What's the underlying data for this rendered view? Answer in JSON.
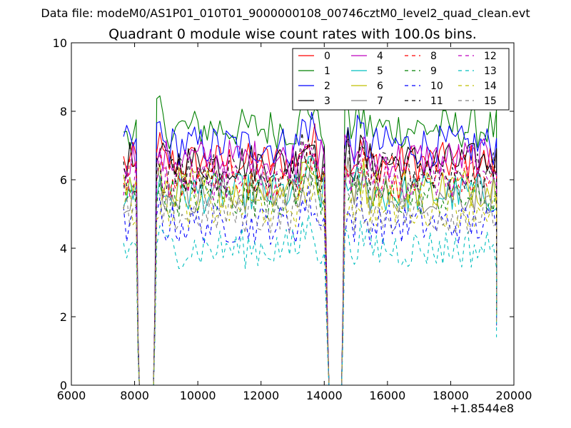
{
  "chart_data": {
    "type": "line",
    "suptitle": "Data file: modeM0/AS1P01_010T01_9000000108_00746cztM0_level2_quad_clean.evt",
    "title": "Quadrant 0 module wise count rates with 100.0s bins.",
    "xlabel": "",
    "ylabel": "",
    "x_offset_label": "+1.8544e8",
    "xlim": [
      6000,
      20000
    ],
    "ylim": [
      0,
      10
    ],
    "x_ticks": [
      6000,
      8000,
      10000,
      12000,
      14000,
      16000,
      18000,
      20000
    ],
    "y_ticks": [
      0,
      2,
      4,
      6,
      8,
      10
    ],
    "x_tick_labels": [
      "6000",
      "8000",
      "10000",
      "12000",
      "14000",
      "16000",
      "18000",
      "20000"
    ],
    "y_tick_labels": [
      "0",
      "2",
      "4",
      "6",
      "8",
      "10"
    ],
    "grid": false,
    "legend_position": "top-right",
    "segments": [
      [
        7650,
        8050
      ],
      [
        8700,
        14050
      ],
      [
        14650,
        19450
      ]
    ],
    "gaps": [
      [
        8150,
        8600
      ],
      [
        14150,
        14550
      ]
    ],
    "series": [
      {
        "name": "0",
        "color": "#ff0000",
        "style": "solid",
        "level": 6.5
      },
      {
        "name": "1",
        "color": "#008000",
        "style": "solid",
        "level": 7.5
      },
      {
        "name": "2",
        "color": "#0000ff",
        "style": "solid",
        "level": 7.0
      },
      {
        "name": "3",
        "color": "#000000",
        "style": "solid",
        "level": 6.5
      },
      {
        "name": "4",
        "color": "#bf00bf",
        "style": "solid",
        "level": 6.6
      },
      {
        "name": "5",
        "color": "#00bfbf",
        "style": "solid",
        "level": 5.6
      },
      {
        "name": "6",
        "color": "#bfbf00",
        "style": "solid",
        "level": 5.8
      },
      {
        "name": "7",
        "color": "#808080",
        "style": "solid",
        "level": 5.6
      },
      {
        "name": "8",
        "color": "#ff0000",
        "style": "dashed",
        "level": 6.0
      },
      {
        "name": "9",
        "color": "#008000",
        "style": "dashed",
        "level": 5.5
      },
      {
        "name": "10",
        "color": "#0000ff",
        "style": "dashed",
        "level": 4.7
      },
      {
        "name": "11",
        "color": "#000000",
        "style": "dashed",
        "level": 6.2
      },
      {
        "name": "12",
        "color": "#bf00bf",
        "style": "dashed",
        "level": 6.0
      },
      {
        "name": "13",
        "color": "#00bfbf",
        "style": "dashed",
        "level": 4.0
      },
      {
        "name": "14",
        "color": "#bfbf00",
        "style": "dashed",
        "level": 5.2
      },
      {
        "name": "15",
        "color": "#808080",
        "style": "dashed",
        "level": 5.0
      }
    ]
  }
}
